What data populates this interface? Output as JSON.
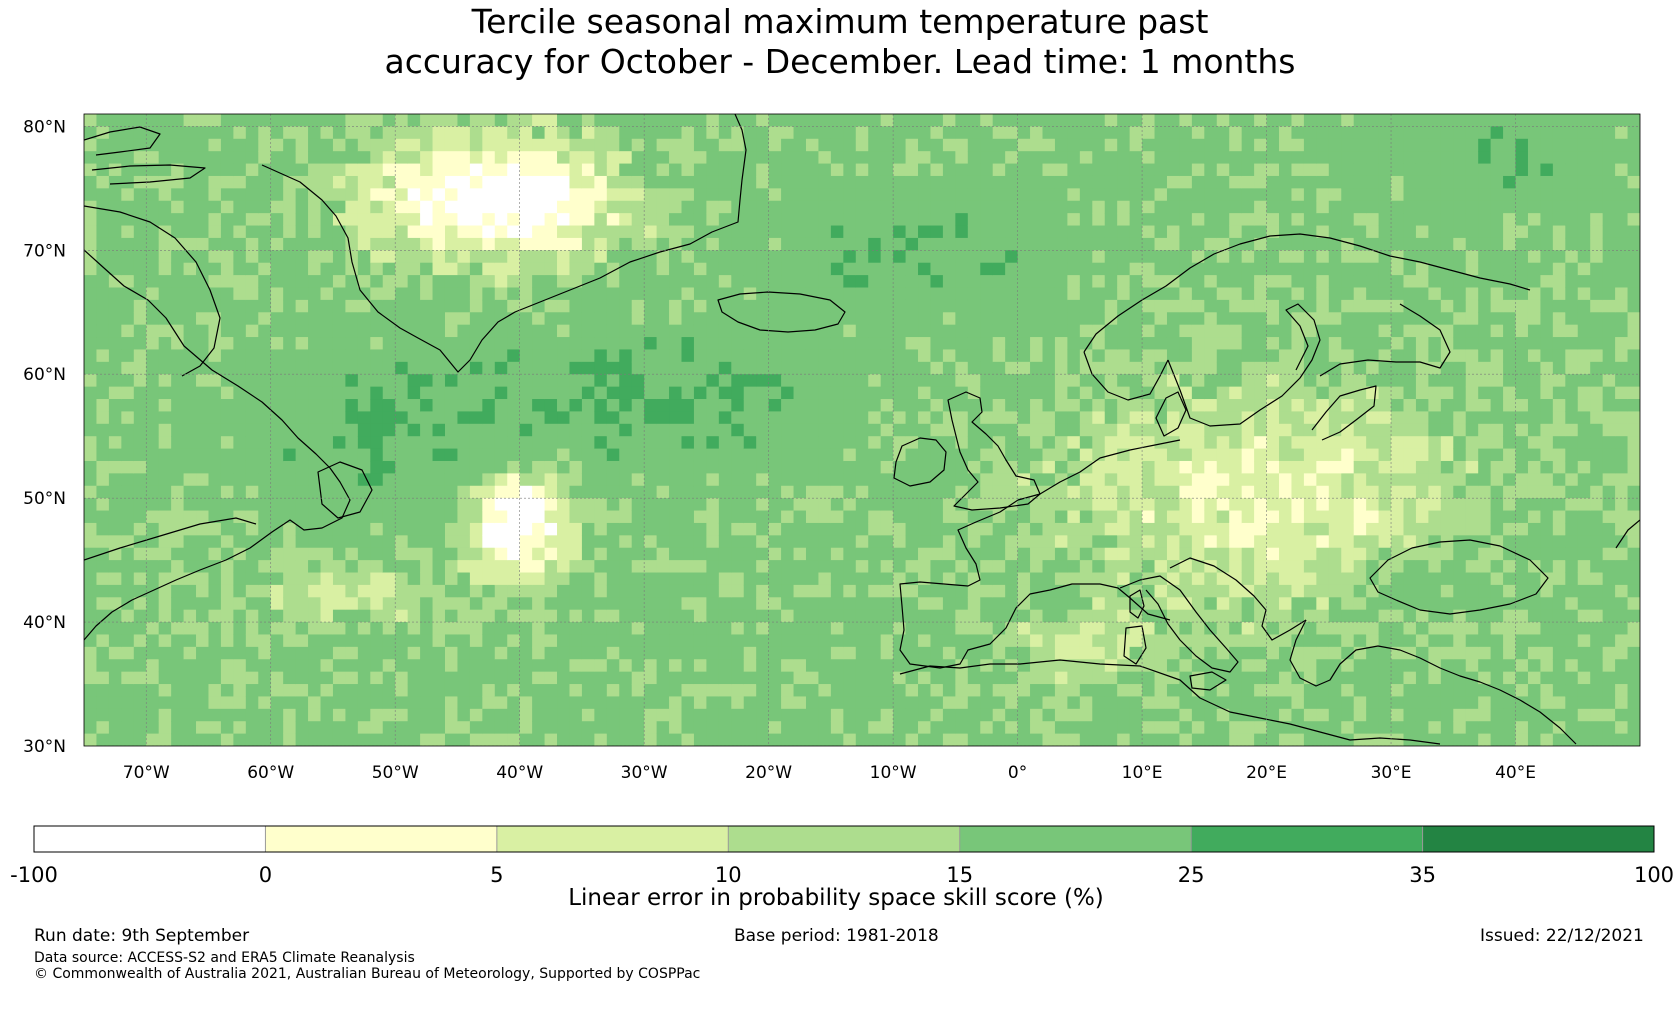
{
  "title": {
    "line1": "Tercile seasonal maximum temperature past",
    "line2": "accuracy for October - December. Lead time: 1 months"
  },
  "map": {
    "lon_range": [
      -75,
      50
    ],
    "lat_range": [
      30,
      81
    ],
    "lat_labels": [
      "30°N",
      "40°N",
      "50°N",
      "60°N",
      "70°N",
      "80°N"
    ],
    "lat_values": [
      30,
      40,
      50,
      60,
      70,
      80
    ],
    "lon_labels": [
      "70°W",
      "60°W",
      "50°W",
      "40°W",
      "30°W",
      "20°W",
      "10°W",
      "0°",
      "10°E",
      "20°E",
      "30°E",
      "40°E"
    ],
    "lon_values": [
      -70,
      -60,
      -50,
      -40,
      -30,
      -20,
      -10,
      0,
      10,
      20,
      30,
      40
    ],
    "coastline_color": "#000000"
  },
  "colorbar": {
    "label": "Linear error in probability space skill score (%)",
    "ticks": [
      "-100",
      "0",
      "5",
      "10",
      "15",
      "25",
      "35",
      "100"
    ],
    "colors": [
      "#ffffff",
      "#ffffcc",
      "#d9f0a3",
      "#addd8e",
      "#78c679",
      "#41ab5d",
      "#238443"
    ]
  },
  "footer": {
    "run_date": "Run date: 9th September",
    "base_period": "Base period: 1981-2018",
    "issued": "Issued: 22/12/2021",
    "data_source": "Data source: ACCESS-S2 and ERA5 Climate Reanalysis",
    "copyright": "© Commonwealth of Australia 2021, Australian Bureau of Meteorology, Supported by COSPPac"
  }
}
